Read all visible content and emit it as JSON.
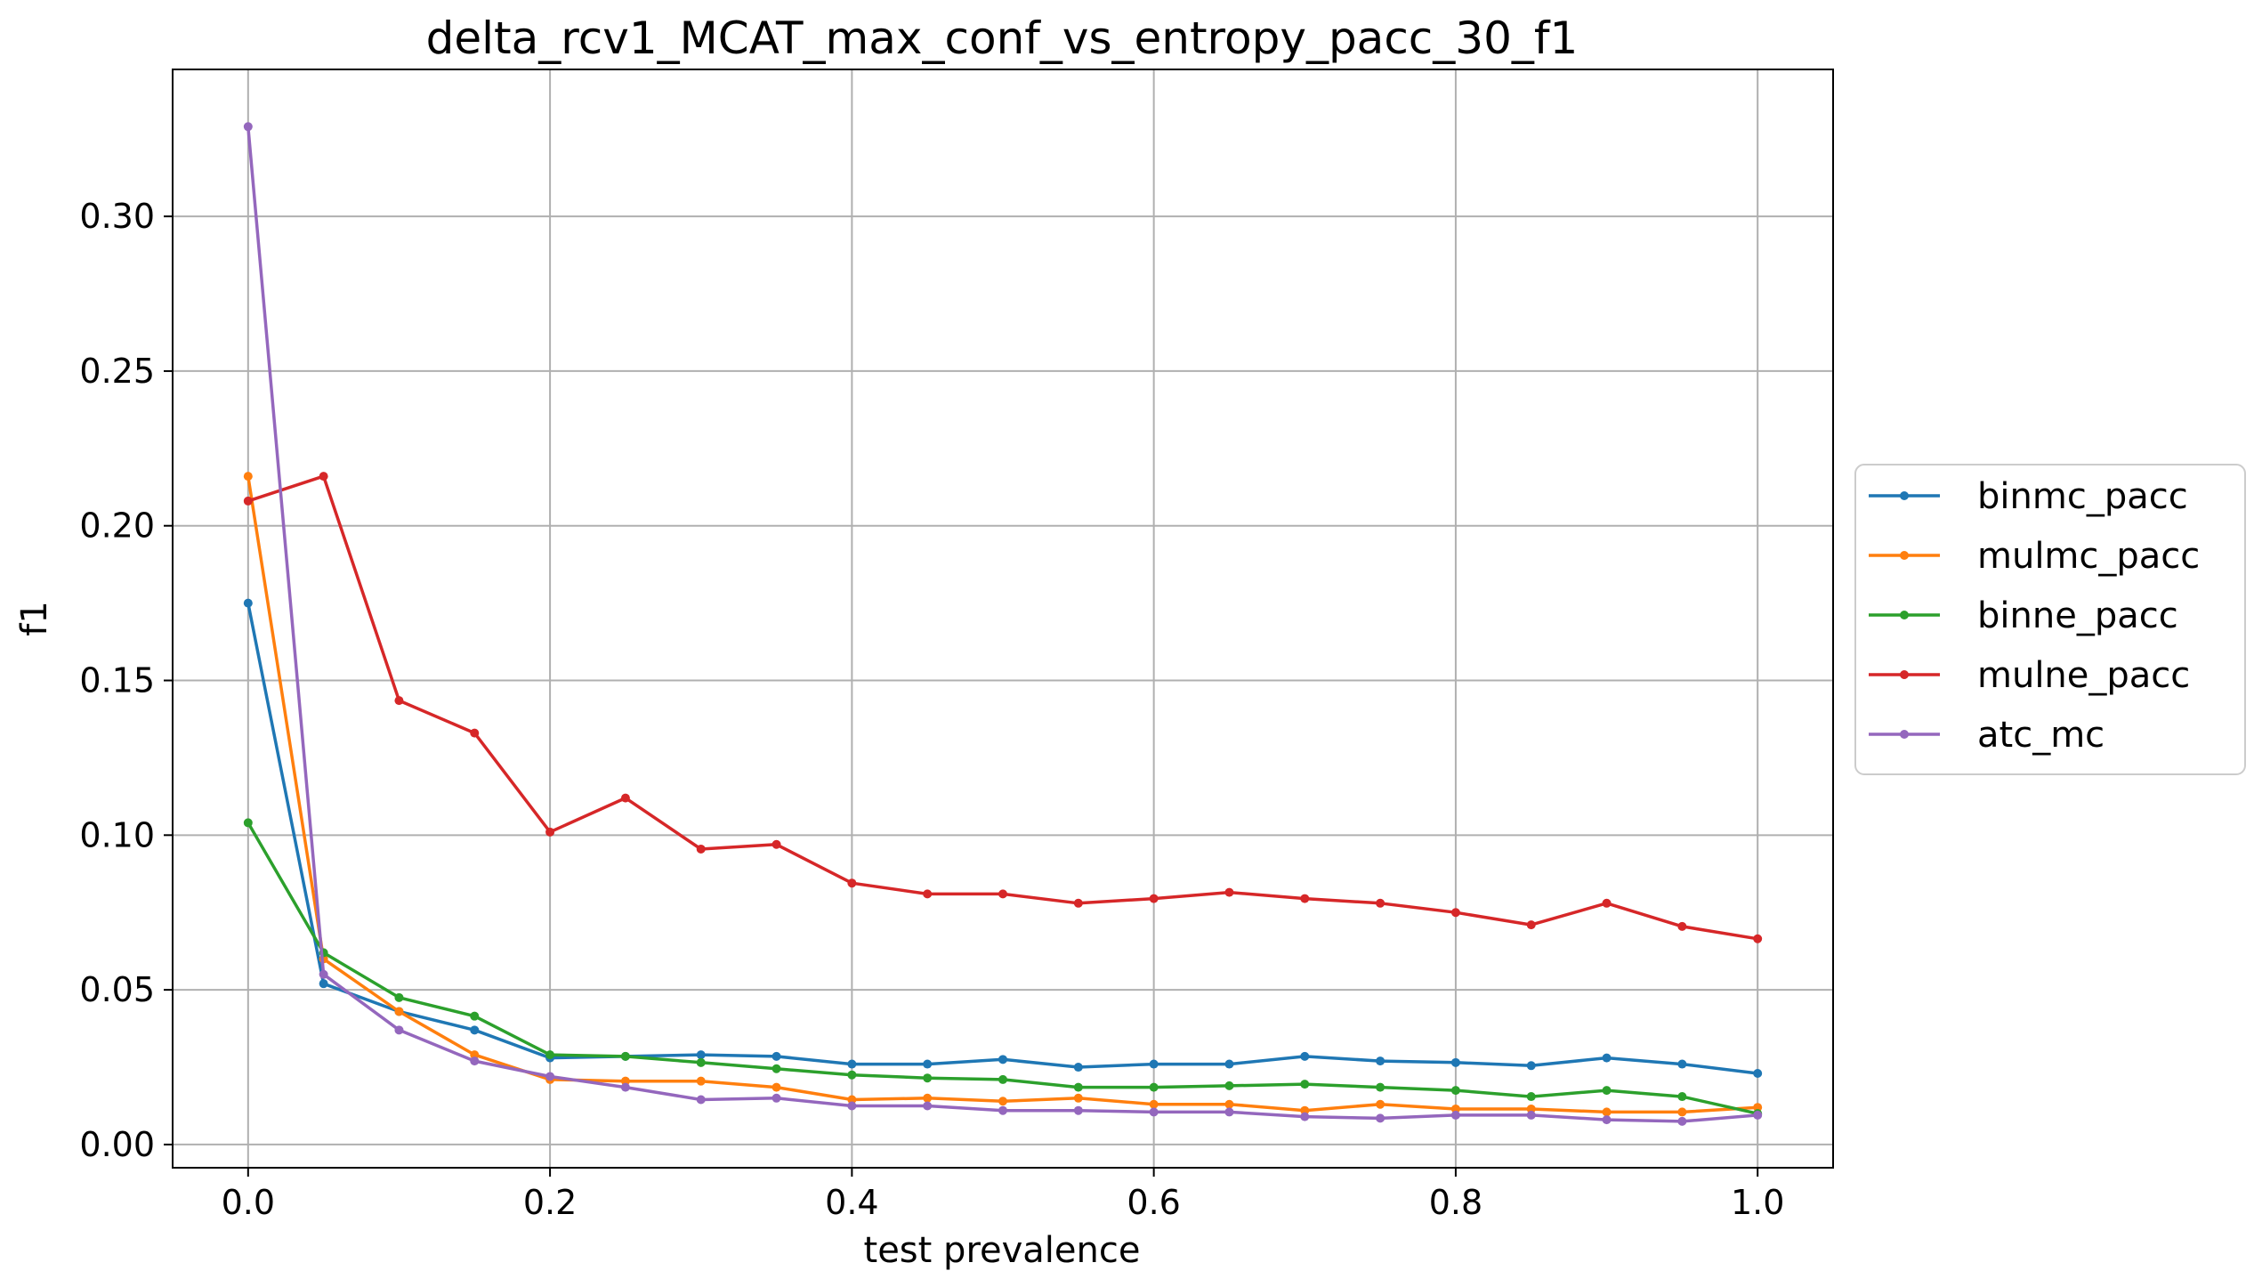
{
  "chart_data": {
    "type": "line",
    "title": "delta_rcv1_MCAT_max_conf_vs_entropy_pacc_30_f1",
    "xlabel": "test prevalence",
    "ylabel": "f1",
    "xlim": [
      -0.05,
      1.05
    ],
    "ylim": [
      -0.0075,
      0.3475
    ],
    "xticks": [
      0.0,
      0.2,
      0.4,
      0.6,
      0.8,
      1.0
    ],
    "xtick_labels": [
      "0.0",
      "0.2",
      "0.4",
      "0.6",
      "0.8",
      "1.0"
    ],
    "yticks": [
      0.0,
      0.05,
      0.1,
      0.15,
      0.2,
      0.25,
      0.3
    ],
    "ytick_labels": [
      "0.00",
      "0.05",
      "0.10",
      "0.15",
      "0.20",
      "0.25",
      "0.30"
    ],
    "grid": true,
    "legend_position": "center-right outside",
    "x": [
      0.0,
      0.05,
      0.1,
      0.15,
      0.2,
      0.25,
      0.3,
      0.35,
      0.4,
      0.45,
      0.5,
      0.55,
      0.6,
      0.65,
      0.7,
      0.75,
      0.8,
      0.85,
      0.9,
      0.95,
      1.0
    ],
    "series": [
      {
        "name": "binmc_pacc",
        "color": "#1f77b4",
        "values": [
          0.175,
          0.052,
          0.043,
          0.037,
          0.028,
          0.0285,
          0.029,
          0.0285,
          0.026,
          0.026,
          0.0275,
          0.025,
          0.026,
          0.026,
          0.0285,
          0.027,
          0.0265,
          0.0255,
          0.028,
          0.026,
          0.023
        ]
      },
      {
        "name": "mulmc_pacc",
        "color": "#ff7f0e",
        "values": [
          0.216,
          0.06,
          0.043,
          0.029,
          0.021,
          0.0205,
          0.0205,
          0.0185,
          0.0145,
          0.015,
          0.014,
          0.015,
          0.013,
          0.013,
          0.011,
          0.013,
          0.0115,
          0.0115,
          0.0105,
          0.0105,
          0.012
        ]
      },
      {
        "name": "binne_pacc",
        "color": "#2ca02c",
        "values": [
          0.104,
          0.062,
          0.0475,
          0.0415,
          0.029,
          0.0285,
          0.0265,
          0.0245,
          0.0225,
          0.0215,
          0.021,
          0.0185,
          0.0185,
          0.019,
          0.0195,
          0.0185,
          0.0175,
          0.0155,
          0.0175,
          0.0155,
          0.01
        ]
      },
      {
        "name": "mulne_pacc",
        "color": "#d62728",
        "values": [
          0.208,
          0.216,
          0.1435,
          0.133,
          0.101,
          0.112,
          0.0955,
          0.097,
          0.0845,
          0.081,
          0.081,
          0.078,
          0.0795,
          0.0815,
          0.0795,
          0.078,
          0.075,
          0.071,
          0.078,
          0.0705,
          0.0665
        ]
      },
      {
        "name": "atc_mc",
        "color": "#9467bd",
        "values": [
          0.329,
          0.055,
          0.037,
          0.027,
          0.022,
          0.0185,
          0.0145,
          0.015,
          0.0125,
          0.0125,
          0.011,
          0.011,
          0.0105,
          0.0105,
          0.009,
          0.0085,
          0.0095,
          0.0095,
          0.008,
          0.0075,
          0.0095
        ]
      }
    ]
  }
}
